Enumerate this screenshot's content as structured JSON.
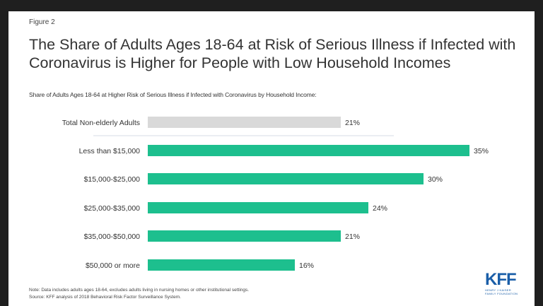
{
  "figure_label": "Figure 2",
  "title": "The Share of Adults Ages 18-64 at Risk of Serious Illness if Infected with Coronavirus is Higher for People with Low Household Incomes",
  "subtitle": "Share of Adults Ages 18-64 at Higher Risk of Serious Illness if Infected with Coronavirus by Household Income:",
  "colors": {
    "total": "#d9d9d9",
    "income": "#1dbf8e",
    "divider": "#d6dbe6",
    "logo": "#1a5ea8"
  },
  "chart_data": {
    "type": "bar",
    "orientation": "horizontal",
    "categories": [
      "Total Non-elderly Adults",
      "Less than $15,000",
      "$15,000-$25,000",
      "$25,000-$35,000",
      "$35,000-$50,000",
      "$50,000 or more"
    ],
    "values": [
      21,
      35,
      30,
      24,
      21,
      16
    ],
    "value_labels": [
      "21%",
      "35%",
      "30%",
      "24%",
      "21%",
      "16%"
    ],
    "unit": "%",
    "xlim": [
      0,
      35
    ],
    "grid": false
  },
  "notes": {
    "note": "Note: Data includes adults ages 18-64, excludes adults living in nursing homes or other institutional settings.",
    "source": "Source: KFF analysis of 2018 Behavioral Risk Factor Surveillance System."
  },
  "logo": {
    "text": "KFF",
    "org_line1": "HENRY J KAISER",
    "org_line2": "FAMILY FOUNDATION"
  }
}
